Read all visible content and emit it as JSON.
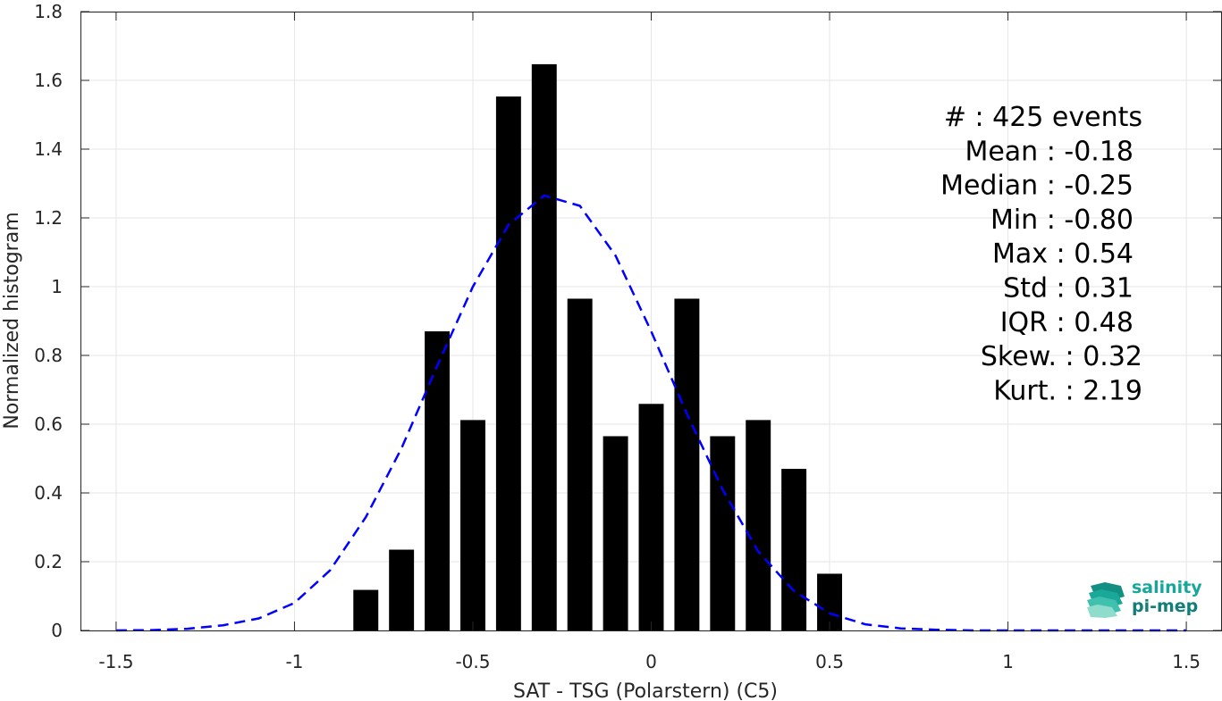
{
  "chart_data": {
    "type": "bar",
    "xlabel": "SAT - TSG (Polarstern) (C5)",
    "ylabel": "Normalized histogram",
    "xlim": [
      -1.6,
      1.6
    ],
    "ylim": [
      0,
      1.8
    ],
    "xticks": [
      -1.5,
      -1,
      -0.5,
      0,
      0.5,
      1,
      1.5
    ],
    "xtick_labels": [
      "-1.5",
      "-1",
      "-0.5",
      "0",
      "0.5",
      "1",
      "1.5"
    ],
    "yticks": [
      0,
      0.2,
      0.4,
      0.6,
      0.8,
      1,
      1.2,
      1.4,
      1.6,
      1.8
    ],
    "ytick_labels": [
      "0",
      "0.2",
      "0.4",
      "0.6",
      "0.8",
      "1",
      "1.2",
      "1.4",
      "1.6",
      "1.8"
    ],
    "grid": true,
    "bar_color": "#000000",
    "bar_width": 0.07,
    "bars": {
      "x": [
        -0.8,
        -0.7,
        -0.6,
        -0.5,
        -0.4,
        -0.3,
        -0.2,
        -0.1,
        0,
        0.1,
        0.2,
        0.3,
        0.4,
        0.5
      ],
      "values": [
        0.118,
        0.235,
        0.87,
        0.612,
        1.553,
        1.647,
        0.965,
        0.565,
        0.659,
        0.965,
        0.565,
        0.612,
        0.47,
        0.165
      ]
    },
    "fit_curve": {
      "style": "dashed",
      "color": "#0000ff",
      "x": [
        -1.5,
        -1.4,
        -1.3,
        -1.2,
        -1.1,
        -1.0,
        -0.9,
        -0.8,
        -0.7,
        -0.6,
        -0.5,
        -0.4,
        -0.3,
        -0.2,
        -0.1,
        0,
        0.1,
        0.2,
        0.3,
        0.4,
        0.5,
        0.6,
        0.7,
        0.8,
        0.9,
        1.0,
        1.1,
        1.2,
        1.3,
        1.4,
        1.5
      ],
      "y": [
        0.0,
        0.001,
        0.005,
        0.015,
        0.035,
        0.08,
        0.175,
        0.33,
        0.53,
        0.77,
        1.0,
        1.18,
        1.265,
        1.235,
        1.09,
        0.87,
        0.63,
        0.41,
        0.23,
        0.115,
        0.05,
        0.018,
        0.006,
        0.002,
        0.0,
        0.0,
        0.0,
        0.0,
        0.0,
        0.0,
        0.0
      ]
    },
    "stats": [
      {
        "label": "#  : 425 events"
      },
      {
        "label": "Mean : -0.18"
      },
      {
        "label": "Median : -0.25"
      },
      {
        "label": "Min : -0.80"
      },
      {
        "label": "Max : 0.54"
      },
      {
        "label": "Std : 0.31"
      },
      {
        "label": "IQR : 0.48"
      },
      {
        "label": "Skew. : 0.32"
      },
      {
        "label": "Kurt. : 2.19"
      }
    ]
  },
  "logo": {
    "line1": "salinity",
    "line2": "pi-mep"
  }
}
